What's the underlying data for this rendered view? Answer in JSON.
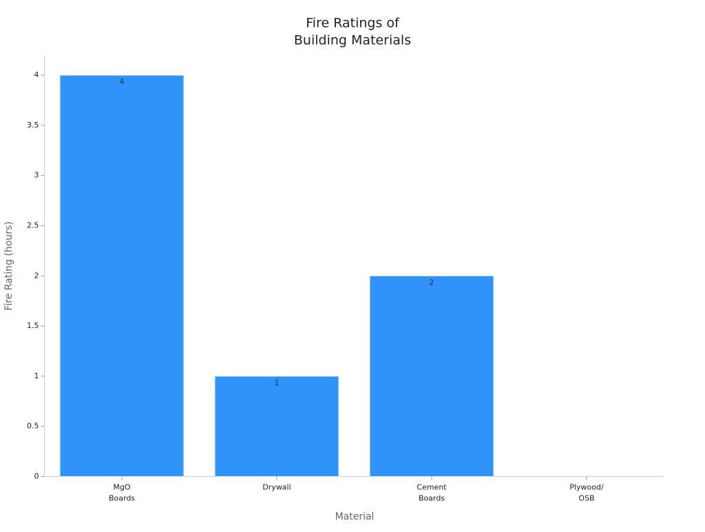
{
  "chart_data": {
    "type": "bar",
    "title": [
      "Fire Ratings of",
      "Building Materials"
    ],
    "x_label": "Material",
    "y_label": "Fire Rating (hours)",
    "categories": [
      [
        "MgO",
        "Boards"
      ],
      [
        "Drywall"
      ],
      [
        "Cement",
        "Boards"
      ],
      [
        "Plywood/",
        "OSB"
      ]
    ],
    "values": [
      4,
      1,
      2,
      0
    ],
    "color": "#2f93fa",
    "ylim": [
      0,
      4.2
    ],
    "yticks": [
      0,
      0.5,
      1,
      1.5,
      2,
      2.5,
      3,
      3.5,
      4
    ],
    "grid": false
  }
}
